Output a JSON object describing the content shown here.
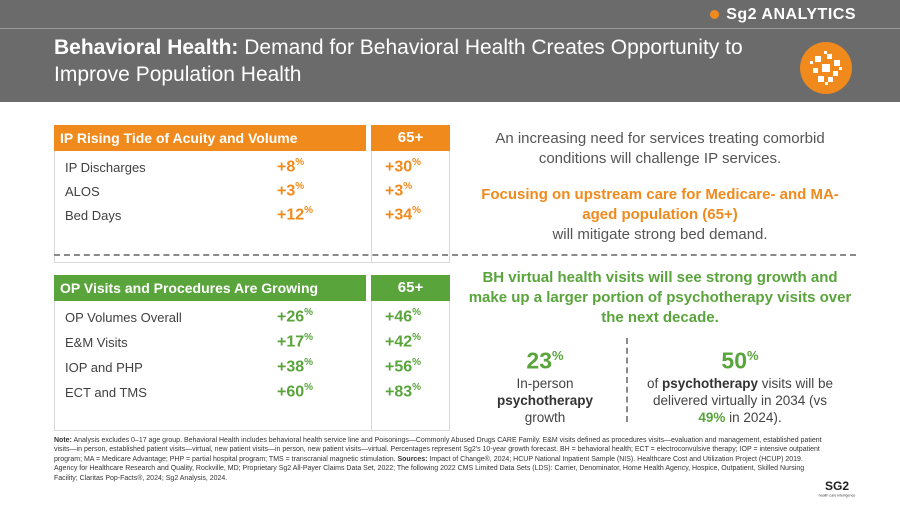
{
  "header": {
    "brand": "Sg2 ANALYTICS",
    "title_bold": "Behavioral Health:",
    "title_rest": " Demand for Behavioral Health Creates Opportunity to Improve Population Health"
  },
  "colors": {
    "orange": "#f08a1c",
    "green": "#5aa43c",
    "header_gray": "#6b6b6b"
  },
  "ip_table": {
    "title": "IP Rising Tide of Acuity and Volume",
    "col2": "65+",
    "rows": [
      {
        "label": "IP Discharges",
        "all": "+8",
        "senior": "+30"
      },
      {
        "label": "ALOS",
        "all": "+3",
        "senior": "+3"
      },
      {
        "label": "Bed Days",
        "all": "+12",
        "senior": "+34"
      }
    ]
  },
  "op_table": {
    "title": "OP Visits and Procedures Are Growing",
    "col2": "65+",
    "rows": [
      {
        "label": "OP Volumes Overall",
        "all": "+26",
        "senior": "+46"
      },
      {
        "label": "E&M Visits",
        "all": "+17",
        "senior": "+42"
      },
      {
        "label": "IOP and PHP",
        "all": "+38",
        "senior": "+56"
      },
      {
        "label": "ECT and TMS",
        "all": "+60",
        "senior": "+83"
      }
    ]
  },
  "percent_sign": "%",
  "right": {
    "text1": "An increasing need for services treating comorbid conditions will challenge IP services.",
    "text2_highlight": "Focusing on upstream care for Medicare- and MA-aged population (65+)",
    "text2_rest": "will mitigate strong bed demand.",
    "text3": "BH virtual health visits will see strong growth and make up a larger portion of psychotherapy visits over the next decade.",
    "stat1": {
      "value": "23",
      "line1": "In-person",
      "line2": "psychotherapy",
      "line3": "growth"
    },
    "stat2": {
      "value": "50",
      "pre": "of ",
      "bold": "psychotherapy",
      "post": " visits will be delivered virtually in 2034 (vs ",
      "hl": "49%",
      "end": " in 2024)."
    }
  },
  "note": {
    "label": "Note:",
    "text": " Analysis excludes 0–17 age group. Behavioral Health includes behavioral health service line and Poisonings—Commonly Abused Drugs CARE Family. E&M visits defined as procedures visits—evaluation and management, established patient visits—in person, established patient visits—virtual, new patient visits—in person, new patient visits—virtual. Percentages represent Sg2's 10-year growth forecast. BH = behavioral health; ECT = electroconvulsive therapy; IOP = intensive outpatient program; MA = Medicare Advantage; PHP = partial hospital program; TMS = transcranial magnetic stimulation.",
    "sources_label": " Sources:",
    "sources": " Impact of Change®, 2024; HCUP National Inpatient Sample (NIS). Healthcare Cost and Utilization Project (HCUP) 2019. Agency for Healthcare Research and Quality, Rockville, MD; Proprietary Sg2 All-Payer Claims Data Set, 2022; The following 2022 CMS Limited Data Sets (LDS): Carrier, Denominator, Home Health Agency, Hospice, Outpatient, Skilled Nursing Facility; Claritas Pop-Facts®, 2024; Sg2 Analysis, 2024."
  },
  "footer_logo": {
    "text": "SG2",
    "tagline": "health care intelligence"
  }
}
